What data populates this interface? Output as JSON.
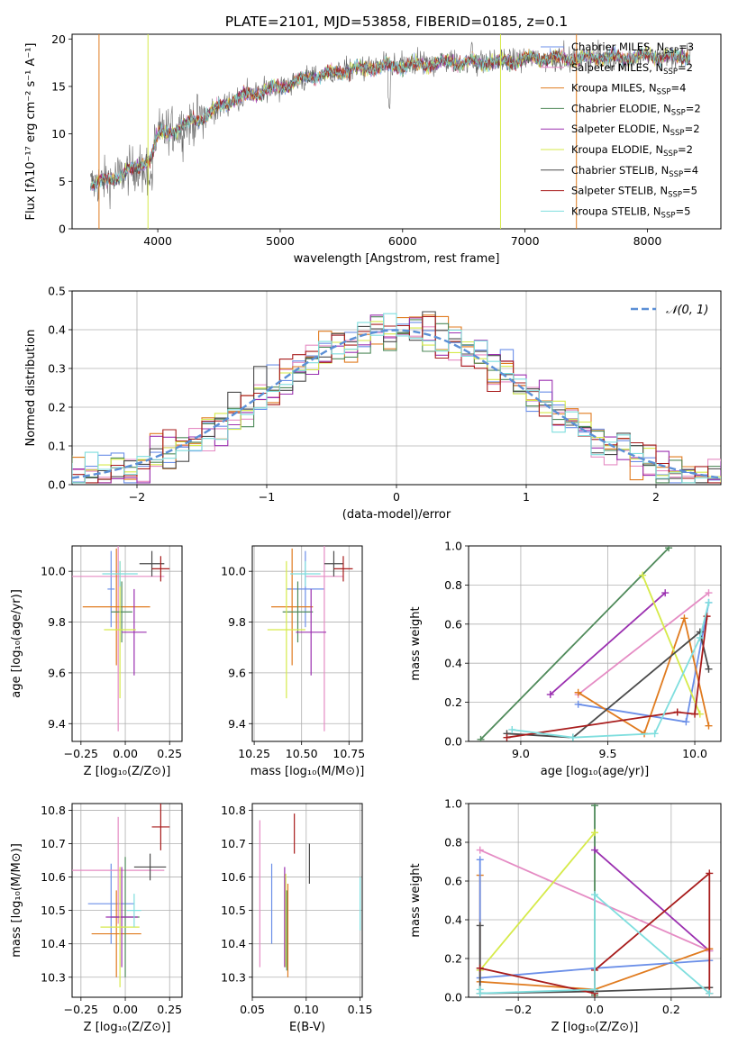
{
  "title": "PLATE=2101, MJD=53858, FIBERID=0185, z=0.1",
  "colors": {
    "chabrier_miles": "#6b8fe8",
    "salpeter_miles": "#e58cc4",
    "kroupa_miles": "#e07b1f",
    "chabrier_elodie": "#4f8a5a",
    "salpeter_elodie": "#9b30b0",
    "kroupa_elodie": "#d6ea4a",
    "chabrier_stelib": "#4b4b4b",
    "salpeter_stelib": "#a81c1c",
    "kroupa_stelib": "#7fdede",
    "normal": "#5b8fd6"
  },
  "chart_data": [
    {
      "id": "spectrum",
      "type": "line",
      "xlabel": "wavelength [Angstrom, rest frame]",
      "ylabel": "Flux [fλ10⁻¹⁷ erg cm⁻² s⁻¹ A⁻¹]",
      "xlim": [
        3300,
        8600
      ],
      "ylim": [
        0,
        20.5
      ],
      "xticks": [
        "4000",
        "5000",
        "6000",
        "7000",
        "8000"
      ],
      "yticks": [
        "0",
        "5",
        "10",
        "15",
        "20"
      ],
      "legend_position": "right",
      "continuum": {
        "x": [
          3450,
          3550,
          3650,
          3800,
          3950,
          4000,
          4200,
          4400,
          4600,
          4800,
          5000,
          5200,
          5400,
          5600,
          5800,
          6000,
          6200,
          6400,
          6600,
          6800,
          7000,
          7200,
          7400,
          7600,
          7800,
          8000,
          8200,
          8350
        ],
        "y": [
          4.6,
          5.0,
          5.4,
          6.3,
          7.6,
          9.8,
          10.8,
          12.0,
          13.5,
          14.3,
          15.0,
          15.8,
          16.4,
          16.8,
          17.1,
          17.2,
          17.3,
          17.6,
          17.5,
          17.6,
          17.9,
          18.0,
          17.9,
          18.1,
          18.0,
          18.2,
          18.1,
          18.2
        ]
      },
      "series": [
        {
          "name": "Chabrier MILES, N_SSP=3",
          "color_key": "chabrier_miles",
          "label_main": "Chabrier MILES, N",
          "label_sub": "SSP",
          "label_tail": "=3"
        },
        {
          "name": "Salpeter MILES, N_SSP=2",
          "color_key": "salpeter_miles",
          "label_main": "Salpeter MILES, N",
          "label_sub": "SSP",
          "label_tail": "=2"
        },
        {
          "name": "Kroupa MILES, N_SSP=4",
          "color_key": "kroupa_miles",
          "label_main": "Kroupa MILES, N",
          "label_sub": "SSP",
          "label_tail": "=4"
        },
        {
          "name": "Chabrier ELODIE, N_SSP=2",
          "color_key": "chabrier_elodie",
          "label_main": "Chabrier ELODIE, N",
          "label_sub": "SSP",
          "label_tail": "=2"
        },
        {
          "name": "Salpeter ELODIE, N_SSP=2",
          "color_key": "salpeter_elodie",
          "label_main": "Salpeter ELODIE, N",
          "label_sub": "SSP",
          "label_tail": "=2"
        },
        {
          "name": "Kroupa ELODIE, N_SSP=2",
          "color_key": "kroupa_elodie",
          "label_main": "Kroupa ELODIE, N",
          "label_sub": "SSP",
          "label_tail": "=2"
        },
        {
          "name": "Chabrier STELIB, N_SSP=4",
          "color_key": "chabrier_stelib",
          "label_main": "Chabrier STELIB, N",
          "label_sub": "SSP",
          "label_tail": "=4"
        },
        {
          "name": "Salpeter STELIB, N_SSP=5",
          "color_key": "salpeter_stelib",
          "label_main": "Salpeter STELIB, N",
          "label_sub": "SSP",
          "label_tail": "=5"
        },
        {
          "name": "Kroupa STELIB, N_SSP=5",
          "color_key": "kroupa_stelib",
          "label_main": "Kroupa STELIB, N",
          "label_sub": "SSP",
          "label_tail": "=5"
        }
      ],
      "vertical_spikes": [
        {
          "x": 3520,
          "color_key": "kroupa_miles"
        },
        {
          "x": 3920,
          "color_key": "kroupa_elodie"
        },
        {
          "x": 6800,
          "color_key": "kroupa_elodie"
        },
        {
          "x": 7420,
          "color_key": "kroupa_miles"
        }
      ]
    },
    {
      "id": "residuals",
      "type": "line",
      "xlabel": "(data-model)/error",
      "ylabel": "Normed distribution",
      "xlim": [
        -2.5,
        2.5
      ],
      "ylim": [
        0,
        0.5
      ],
      "xticks": [
        "−2",
        "−1",
        "0",
        "1",
        "2"
      ],
      "yticks": [
        "0.0",
        "0.1",
        "0.2",
        "0.3",
        "0.4",
        "0.5"
      ],
      "grid": true,
      "legend_position": "top-right",
      "legend_label": "𝒩(0, 1)",
      "bin_width": 0.1,
      "histogram_series_keys": [
        "chabrier_miles",
        "salpeter_miles",
        "kroupa_miles",
        "chabrier_elodie",
        "salpeter_elodie",
        "kroupa_elodie",
        "chabrier_stelib",
        "salpeter_stelib",
        "kroupa_stelib"
      ]
    },
    {
      "id": "age_vs_z",
      "type": "scatter",
      "xlabel": "Z [log₁₀(Z/Z⊙)]",
      "ylabel": "age  [log₁₀(age/yr)]",
      "xlim": [
        -0.3,
        0.32
      ],
      "ylim": [
        9.33,
        10.1
      ],
      "xticks": [
        "−0.25",
        "0.00",
        "0.25"
      ],
      "yticks": [
        "9.4",
        "9.6",
        "9.8",
        "10.0"
      ],
      "grid": true,
      "points": [
        {
          "color_key": "chabrier_miles",
          "x": -0.08,
          "xerr": 0.02,
          "y": 9.93,
          "yerr": 0.15
        },
        {
          "color_key": "salpeter_miles",
          "x": -0.04,
          "xerr": 0.26,
          "y": 9.98,
          "yerr": 0.61
        },
        {
          "color_key": "kroupa_miles",
          "x": -0.05,
          "xerr": 0.19,
          "y": 9.86,
          "yerr": 0.23
        },
        {
          "color_key": "chabrier_elodie",
          "x": -0.02,
          "xerr": 0.06,
          "y": 9.84,
          "yerr": 0.12
        },
        {
          "color_key": "salpeter_elodie",
          "x": 0.05,
          "xerr": 0.07,
          "y": 9.76,
          "yerr": 0.17
        },
        {
          "color_key": "kroupa_elodie",
          "x": -0.03,
          "xerr": 0.09,
          "y": 9.77,
          "yerr": 0.27
        },
        {
          "color_key": "chabrier_stelib",
          "x": 0.15,
          "xerr": 0.07,
          "y": 10.03,
          "yerr": 0.05
        },
        {
          "color_key": "salpeter_stelib",
          "x": 0.2,
          "xerr": 0.05,
          "y": 10.01,
          "yerr": 0.05
        },
        {
          "color_key": "kroupa_stelib",
          "x": -0.03,
          "xerr": 0.1,
          "y": 9.99,
          "yerr": 0.05
        }
      ]
    },
    {
      "id": "age_vs_mass",
      "type": "scatter",
      "xlabel": "mass [log₁₀(M/M⊙)]",
      "ylabel": "",
      "xlim": [
        10.24,
        10.82
      ],
      "ylim": [
        9.33,
        10.1
      ],
      "xticks": [
        "10.25",
        "10.50",
        "10.75"
      ],
      "yticks": [
        "9.4",
        "9.6",
        "9.8",
        "10.0"
      ],
      "grid": true,
      "points": [
        {
          "color_key": "chabrier_miles",
          "x": 10.52,
          "xerr": 0.1,
          "y": 9.93,
          "yerr": 0.15
        },
        {
          "color_key": "salpeter_miles",
          "x": 10.62,
          "xerr": 0.1,
          "y": 9.98,
          "yerr": 0.61
        },
        {
          "color_key": "kroupa_miles",
          "x": 10.45,
          "xerr": 0.11,
          "y": 9.86,
          "yerr": 0.23
        },
        {
          "color_key": "chabrier_elodie",
          "x": 10.48,
          "xerr": 0.08,
          "y": 9.84,
          "yerr": 0.12
        },
        {
          "color_key": "salpeter_elodie",
          "x": 10.55,
          "xerr": 0.08,
          "y": 9.76,
          "yerr": 0.17
        },
        {
          "color_key": "kroupa_elodie",
          "x": 10.42,
          "xerr": 0.1,
          "y": 9.77,
          "yerr": 0.27
        },
        {
          "color_key": "chabrier_stelib",
          "x": 10.67,
          "xerr": 0.05,
          "y": 10.03,
          "yerr": 0.05
        },
        {
          "color_key": "salpeter_stelib",
          "x": 10.72,
          "xerr": 0.05,
          "y": 10.01,
          "yerr": 0.05
        },
        {
          "color_key": "kroupa_stelib",
          "x": 10.52,
          "xerr": 0.08,
          "y": 9.99,
          "yerr": 0.05
        }
      ]
    },
    {
      "id": "weight_vs_age",
      "type": "line",
      "xlabel": "age  [log₁₀(age/yr)]",
      "ylabel": "mass weight",
      "xlim": [
        8.7,
        10.15
      ],
      "ylim": [
        0,
        1.0
      ],
      "xticks": [
        "9.0",
        "9.5",
        "10.0"
      ],
      "yticks": [
        "0.0",
        "0.2",
        "0.4",
        "0.6",
        "0.8",
        "1.0"
      ],
      "grid": true,
      "series": [
        {
          "color_key": "chabrier_elodie",
          "x": [
            8.77,
            9.85
          ],
          "y": [
            0.01,
            0.99
          ]
        },
        {
          "color_key": "salpeter_elodie",
          "x": [
            9.17,
            9.83
          ],
          "y": [
            0.24,
            0.76
          ]
        },
        {
          "color_key": "salpeter_miles",
          "x": [
            9.33,
            10.08
          ],
          "y": [
            0.24,
            0.76
          ]
        },
        {
          "color_key": "chabrier_miles",
          "x": [
            9.33,
            9.95,
            10.08
          ],
          "y": [
            0.19,
            0.1,
            0.71
          ]
        },
        {
          "color_key": "kroupa_miles",
          "x": [
            9.33,
            9.71,
            9.94,
            10.08
          ],
          "y": [
            0.25,
            0.04,
            0.63,
            0.08
          ]
        },
        {
          "color_key": "kroupa_elodie",
          "x": [
            9.7,
            10.03
          ],
          "y": [
            0.85,
            0.14
          ]
        },
        {
          "color_key": "chabrier_stelib",
          "x": [
            8.92,
            9.3,
            10.03,
            10.08
          ],
          "y": [
            0.04,
            0.02,
            0.56,
            0.37
          ]
        },
        {
          "color_key": "salpeter_stelib",
          "x": [
            8.92,
            9.9,
            10.0,
            10.07
          ],
          "y": [
            0.02,
            0.15,
            0.14,
            0.64
          ]
        },
        {
          "color_key": "kroupa_stelib",
          "x": [
            8.95,
            9.3,
            9.77,
            10.03,
            10.08
          ],
          "y": [
            0.06,
            0.02,
            0.04,
            0.53,
            0.71
          ]
        }
      ]
    },
    {
      "id": "mass_vs_z",
      "type": "scatter",
      "xlabel": "Z [log₁₀(Z/Z⊙)]",
      "ylabel": "mass [log₁₀(M/M⊙)]",
      "xlim": [
        -0.3,
        0.32
      ],
      "ylim": [
        10.24,
        10.82
      ],
      "xticks": [
        "−0.25",
        "0.00",
        "0.25"
      ],
      "yticks": [
        "10.3",
        "10.4",
        "10.5",
        "10.6",
        "10.7",
        "10.8"
      ],
      "grid": true,
      "points": [
        {
          "color_key": "chabrier_miles",
          "x": -0.08,
          "xerr": 0.13,
          "y": 10.52,
          "yerr": 0.12
        },
        {
          "color_key": "salpeter_miles",
          "x": -0.04,
          "xerr": 0.26,
          "y": 10.62,
          "yerr": 0.16
        },
        {
          "color_key": "kroupa_miles",
          "x": -0.05,
          "xerr": 0.14,
          "y": 10.43,
          "yerr": 0.13
        },
        {
          "color_key": "chabrier_elodie",
          "x": 0.0,
          "xerr": 0.08,
          "y": 10.48,
          "yerr": 0.18
        },
        {
          "color_key": "salpeter_elodie",
          "x": -0.02,
          "xerr": 0.09,
          "y": 10.48,
          "yerr": 0.15
        },
        {
          "color_key": "kroupa_elodie",
          "x": -0.03,
          "xerr": 0.11,
          "y": 10.45,
          "yerr": 0.18
        },
        {
          "color_key": "chabrier_stelib",
          "x": 0.14,
          "xerr": 0.09,
          "y": 10.63,
          "yerr": 0.04
        },
        {
          "color_key": "salpeter_stelib",
          "x": 0.2,
          "xerr": 0.05,
          "y": 10.75,
          "yerr": 0.07
        },
        {
          "color_key": "kroupa_stelib",
          "x": 0.05,
          "xerr": 0.04,
          "y": 10.5,
          "yerr": 0.05
        }
      ]
    },
    {
      "id": "mass_vs_ebv",
      "type": "scatter",
      "xlabel": "E(B-V)",
      "ylabel": "",
      "xlim": [
        0.05,
        0.152
      ],
      "ylim": [
        10.24,
        10.82
      ],
      "xticks": [
        "0.05",
        "0.10",
        "0.15"
      ],
      "yticks": [
        "10.3",
        "10.4",
        "10.5",
        "10.6",
        "10.7",
        "10.8"
      ],
      "grid": true,
      "points": [
        {
          "color_key": "chabrier_miles",
          "x": 0.068,
          "xerr": 0,
          "y": 10.52,
          "yerr": 0.12
        },
        {
          "color_key": "salpeter_miles",
          "x": 0.057,
          "xerr": 0,
          "y": 10.55,
          "yerr": 0.22
        },
        {
          "color_key": "kroupa_miles",
          "x": 0.083,
          "xerr": 0,
          "y": 10.44,
          "yerr": 0.14
        },
        {
          "color_key": "chabrier_elodie",
          "x": 0.082,
          "xerr": 0,
          "y": 10.44,
          "yerr": 0.12
        },
        {
          "color_key": "salpeter_elodie",
          "x": 0.08,
          "xerr": 0,
          "y": 10.48,
          "yerr": 0.15
        },
        {
          "color_key": "kroupa_elodie",
          "x": 0.081,
          "xerr": 0,
          "y": 10.47,
          "yerr": 0.14
        },
        {
          "color_key": "chabrier_stelib",
          "x": 0.103,
          "xerr": 0,
          "y": 10.64,
          "yerr": 0.06
        },
        {
          "color_key": "salpeter_stelib",
          "x": 0.089,
          "xerr": 0,
          "y": 10.73,
          "yerr": 0.06
        },
        {
          "color_key": "kroupa_stelib",
          "x": 0.15,
          "xerr": 0,
          "y": 10.52,
          "yerr": 0.08
        }
      ]
    },
    {
      "id": "weight_vs_z",
      "type": "line",
      "xlabel": "Z [log₁₀(Z/Z⊙)]",
      "ylabel": "mass weight",
      "xlim": [
        -0.33,
        0.33
      ],
      "ylim": [
        0,
        1.0
      ],
      "xticks": [
        "−0.2",
        "0.0",
        "0.2"
      ],
      "yticks": [
        "0.0",
        "0.2",
        "0.4",
        "0.6",
        "0.8",
        "1.0"
      ],
      "grid": true,
      "series": [
        {
          "color_key": "chabrier_elodie",
          "x": [
            0.0,
            0.0
          ],
          "y": [
            0.01,
            0.99
          ]
        },
        {
          "color_key": "salpeter_elodie",
          "x": [
            0.0,
            0.3
          ],
          "y": [
            0.76,
            0.24
          ]
        },
        {
          "color_key": "salpeter_miles",
          "x": [
            -0.3,
            0.3
          ],
          "y": [
            0.76,
            0.24
          ]
        },
        {
          "color_key": "kroupa_elodie",
          "x": [
            -0.3,
            0.0
          ],
          "y": [
            0.14,
            0.85
          ]
        },
        {
          "color_key": "kroupa_miles",
          "x": [
            -0.3,
            -0.3,
            0.0,
            0.3
          ],
          "y": [
            0.63,
            0.08,
            0.04,
            0.25
          ]
        },
        {
          "color_key": "chabrier_miles",
          "x": [
            -0.3,
            -0.3,
            0.0,
            0.3
          ],
          "y": [
            0.71,
            0.1,
            0.15,
            0.19
          ]
        },
        {
          "color_key": "chabrier_stelib",
          "x": [
            -0.3,
            -0.3,
            0.0,
            0.3
          ],
          "y": [
            0.37,
            0.02,
            0.03,
            0.05
          ]
        },
        {
          "color_key": "salpeter_stelib",
          "x": [
            -0.3,
            0.0,
            0.0,
            0.3,
            0.3
          ],
          "y": [
            0.15,
            0.02,
            0.14,
            0.64,
            0.02
          ]
        },
        {
          "color_key": "kroupa_stelib",
          "x": [
            -0.3,
            -0.3,
            0.0,
            0.0,
            0.3
          ],
          "y": [
            0.04,
            0.02,
            0.04,
            0.53,
            0.02
          ]
        }
      ]
    }
  ]
}
